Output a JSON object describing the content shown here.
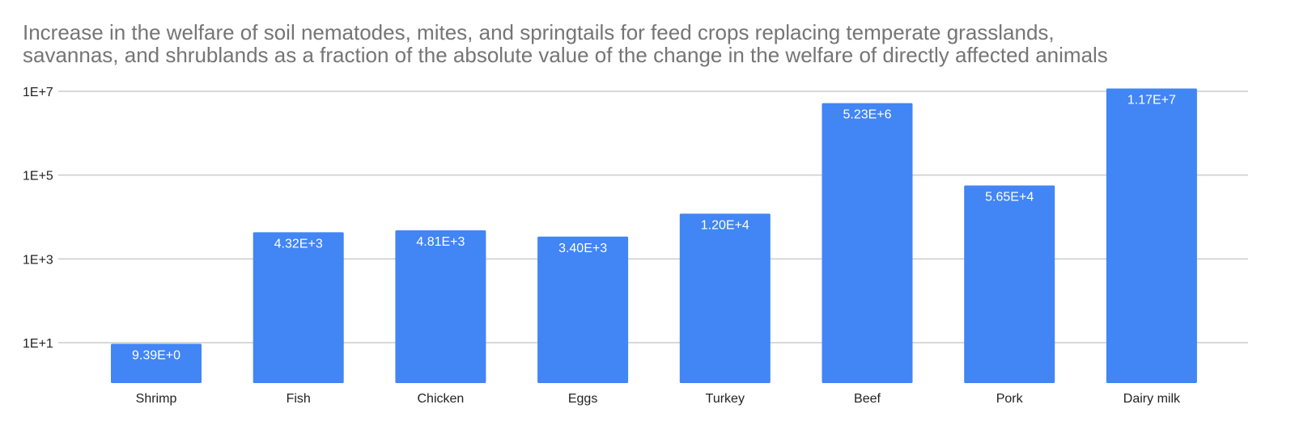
{
  "chart_data": {
    "type": "bar",
    "title_lines": [
      "Increase in the welfare of soil nematodes, mites, and springtails for feed crops replacing temperate grasslands,",
      "savannas, and shrublands as a fraction of the absolute value of the change in the welfare of directly affected animals"
    ],
    "xlabel": "",
    "ylabel": "",
    "yscale": "log",
    "ylim": [
      2,
      12000000
    ],
    "yticks": [
      10,
      1000,
      100000,
      10000000
    ],
    "ytick_labels": [
      "1E+1",
      "1E+3",
      "1E+5",
      "1E+7"
    ],
    "grid": true,
    "legend": "none",
    "categories": [
      "Shrimp",
      "Fish",
      "Chicken",
      "Eggs",
      "Turkey",
      "Beef",
      "Pork",
      "Dairy milk"
    ],
    "values": [
      9.39,
      4320,
      4810,
      3400,
      12000,
      5230000,
      56500,
      11700000
    ],
    "data_labels": [
      "9.39E+0",
      "4.32E+3",
      "4.81E+3",
      "3.40E+3",
      "1.20E+4",
      "5.23E+6",
      "5.65E+4",
      "1.17E+7"
    ],
    "colors": {
      "bar": "#4285f4",
      "grid": "#cccccc",
      "title": "#757575",
      "text": "#222222",
      "data_label": "#ffffff"
    }
  }
}
